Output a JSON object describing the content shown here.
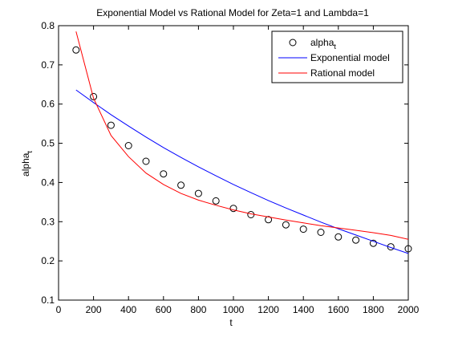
{
  "chart_data": {
    "type": "line",
    "title": "Exponential Model vs Rational Model for Zeta=1 and Lambda=1",
    "xlabel": "t",
    "ylabel": "alpha",
    "ylabel_sub": "t",
    "xlim": [
      0,
      2000
    ],
    "ylim": [
      0.1,
      0.8
    ],
    "xticks": [
      0,
      200,
      400,
      600,
      800,
      1000,
      1200,
      1400,
      1600,
      1800,
      2000
    ],
    "yticks": [
      0.1,
      0.2,
      0.3,
      0.4,
      0.5,
      0.6,
      0.7,
      0.8
    ],
    "grid": false,
    "legend_position": "top-right",
    "series": [
      {
        "name": "alpha",
        "name_sub": "t",
        "style": "markers",
        "marker": "circle",
        "color": "#000000",
        "x": [
          100,
          200,
          300,
          400,
          500,
          600,
          700,
          800,
          900,
          1000,
          1100,
          1200,
          1300,
          1400,
          1500,
          1600,
          1700,
          1800,
          1900,
          2000
        ],
        "y": [
          0.738,
          0.619,
          0.546,
          0.494,
          0.454,
          0.422,
          0.393,
          0.372,
          0.353,
          0.334,
          0.318,
          0.305,
          0.292,
          0.281,
          0.273,
          0.261,
          0.253,
          0.245,
          0.236,
          0.231
        ]
      },
      {
        "name": "Exponential model",
        "style": "line",
        "color": "#0000ff",
        "x": [
          100,
          200,
          300,
          400,
          500,
          600,
          700,
          800,
          900,
          1000,
          1100,
          1200,
          1300,
          1400,
          1500,
          1600,
          1700,
          1800,
          1900,
          2000
        ],
        "y": [
          0.636,
          0.604,
          0.573,
          0.544,
          0.516,
          0.489,
          0.464,
          0.44,
          0.417,
          0.395,
          0.374,
          0.354,
          0.335,
          0.317,
          0.299,
          0.282,
          0.266,
          0.25,
          0.234,
          0.219
        ]
      },
      {
        "name": "Rational model",
        "style": "line",
        "color": "#ff0000",
        "x": [
          100,
          200,
          300,
          400,
          500,
          600,
          700,
          800,
          900,
          1000,
          1100,
          1200,
          1300,
          1400,
          1500,
          1600,
          1700,
          1800,
          1900,
          2000
        ],
        "y": [
          0.785,
          0.615,
          0.52,
          0.466,
          0.424,
          0.395,
          0.372,
          0.355,
          0.342,
          0.33,
          0.32,
          0.312,
          0.304,
          0.297,
          0.29,
          0.284,
          0.278,
          0.272,
          0.265,
          0.255
        ]
      }
    ]
  }
}
